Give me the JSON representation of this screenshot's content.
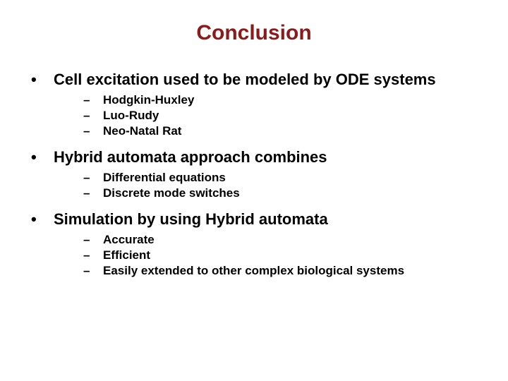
{
  "title": {
    "text": "Conclusion",
    "color": "#8b1a1a",
    "fontsize": 30
  },
  "body": {
    "main_fontsize": 22,
    "sub_fontsize": 17,
    "main_color": "#000000",
    "sub_color": "#000000",
    "bullet_color": "#000000",
    "items": [
      {
        "text": "Cell excitation used to be modeled by ODE systems",
        "sub": [
          "Hodgkin-Huxley",
          "Luo-Rudy",
          "Neo-Natal Rat"
        ]
      },
      {
        "text": "Hybrid automata approach combines",
        "sub": [
          "Differential equations",
          "Discrete mode switches"
        ]
      },
      {
        "text": "Simulation by using Hybrid automata",
        "sub": [
          "Accurate",
          "Efficient",
          "Easily extended to other complex biological systems"
        ]
      }
    ]
  },
  "background_color": "#ffffff"
}
